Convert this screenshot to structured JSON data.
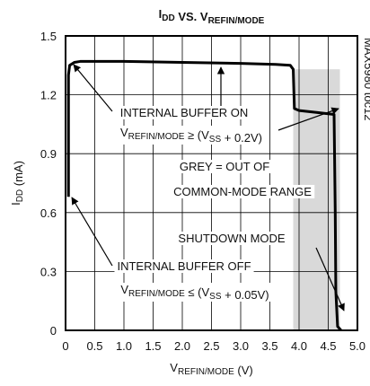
{
  "chart_data": {
    "type": "line",
    "title": [
      "I",
      {
        "sub": "DD"
      },
      " VS. V",
      {
        "sub": "REFIN/MODE"
      }
    ],
    "x_label": [
      "V",
      {
        "sub": "REFIN/MODE"
      },
      " (V)"
    ],
    "y_label": [
      "I",
      {
        "sub": "DD"
      },
      " (mA)"
    ],
    "watermark": "MAX5980 toc12",
    "xlim": [
      0,
      5
    ],
    "ylim": [
      0,
      1.5
    ],
    "xticks": [
      0,
      0.5,
      {
        "value": 1,
        "label": "1.0"
      },
      1.5,
      {
        "value": 2,
        "label": "2.0"
      },
      2.5,
      {
        "value": 3,
        "label": "3.0"
      },
      3.5,
      {
        "value": 4,
        "label": "4.0"
      },
      4.5,
      {
        "value": 5,
        "label": "5.0"
      }
    ],
    "yticks": [
      0,
      0.3,
      0.6,
      0.9,
      1.2,
      1.5
    ],
    "grid": true,
    "shaded_region": {
      "x": [
        3.9,
        4.7
      ],
      "y": [
        0,
        1.33
      ],
      "color": "#d9d9d9"
    },
    "series": [
      {
        "color": "#000000",
        "x": [
          0.05,
          0.05,
          0.07,
          0.15,
          0.25,
          1.0,
          2.0,
          3.0,
          3.6,
          3.85,
          3.9,
          3.92,
          4.0,
          4.3,
          4.6,
          4.62,
          4.63,
          4.66,
          4.72
        ],
        "values": [
          0.68,
          1.3,
          1.35,
          1.365,
          1.37,
          1.37,
          1.365,
          1.36,
          1.355,
          1.35,
          1.33,
          1.13,
          1.12,
          1.11,
          1.1,
          0.6,
          0.2,
          0.02,
          0.0
        ]
      }
    ],
    "annotations": [
      {
        "parts": [
          "INTERNAL BUFFER ON"
        ]
      },
      {
        "parts": [
          "V",
          {
            "sub": "REFIN/MODE"
          },
          " ≥ (V",
          {
            "sub": "SS"
          },
          " + 0.2V)"
        ]
      },
      {
        "parts": [
          "GREY = OUT OF"
        ]
      },
      {
        "parts": [
          "COMMON-MODE RANGE"
        ]
      },
      {
        "parts": [
          "SHUTDOWN MODE"
        ]
      },
      {
        "parts": [
          "INTERNAL BUFFER OFF"
        ]
      },
      {
        "parts": [
          "V",
          {
            "sub": "REFIN/MODE"
          },
          " ≤ (V",
          {
            "sub": "SS"
          },
          "  +  0.05V)"
        ]
      }
    ]
  }
}
